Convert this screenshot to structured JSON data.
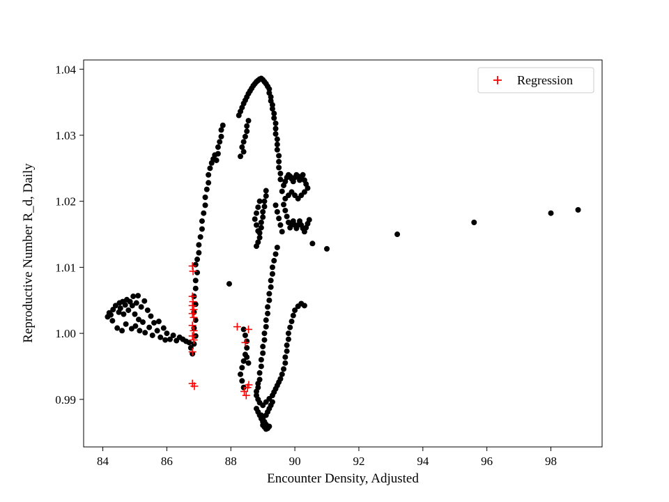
{
  "chart_data": {
    "type": "scatter",
    "title": "",
    "xlabel": "Encounter Density, Adjusted",
    "ylabel": "Reproductive Number R_d, Daily",
    "xlim": [
      83.4,
      99.6
    ],
    "ylim": [
      0.9828,
      1.0414
    ],
    "xticks": [
      84,
      86,
      88,
      90,
      92,
      94,
      96,
      98
    ],
    "yticks": [
      0.99,
      1.0,
      1.01,
      1.02,
      1.03,
      1.04
    ],
    "grid": false,
    "legend_position": "upper right",
    "series": [
      {
        "name": "data",
        "marker": "circle",
        "color": "#000000",
        "points": [
          [
            84.15,
            1.0025
          ],
          [
            84.2,
            1.0031
          ],
          [
            84.25,
            1.0028
          ],
          [
            84.3,
            1.0019
          ],
          [
            84.32,
            1.0036
          ],
          [
            84.4,
            1.0042
          ],
          [
            84.45,
            1.0008
          ],
          [
            84.5,
            1.0032
          ],
          [
            84.52,
            1.0046
          ],
          [
            84.55,
            1.0038
          ],
          [
            84.6,
            1.0004
          ],
          [
            84.62,
            1.0048
          ],
          [
            84.65,
            1.0029
          ],
          [
            84.7,
            1.0043
          ],
          [
            84.72,
            1.0014
          ],
          [
            84.75,
            1.0051
          ],
          [
            84.8,
            1.0035
          ],
          [
            84.85,
            1.0048
          ],
          [
            84.9,
            1.0007
          ],
          [
            84.92,
            1.0042
          ],
          [
            84.95,
            1.0056
          ],
          [
            85.0,
            1.0029
          ],
          [
            85.02,
            1.0011
          ],
          [
            85.05,
            1.0046
          ],
          [
            85.1,
            1.0057
          ],
          [
            85.12,
            1.0021
          ],
          [
            85.15,
            1.0004
          ],
          [
            85.2,
            1.004
          ],
          [
            85.25,
            1.0017
          ],
          [
            85.3,
            1.0049
          ],
          [
            85.32,
            1.0001
          ],
          [
            85.4,
            1.0035
          ],
          [
            85.45,
            1.0009
          ],
          [
            85.5,
            1.0026
          ],
          [
            85.55,
            0.9997
          ],
          [
            85.6,
            1.0016
          ],
          [
            85.7,
            1.0004
          ],
          [
            85.75,
            1.0018
          ],
          [
            85.8,
            0.9994
          ],
          [
            85.9,
            1.0008
          ],
          [
            85.95,
            0.999
          ],
          [
            86.0,
            1.0
          ],
          [
            86.1,
            0.9991
          ],
          [
            86.2,
            0.9997
          ],
          [
            86.3,
            0.9989
          ],
          [
            86.4,
            0.9994
          ],
          [
            86.5,
            0.9991
          ],
          [
            86.6,
            0.9988
          ],
          [
            86.7,
            0.9986
          ],
          [
            86.75,
            0.9978
          ],
          [
            86.8,
            0.9969
          ],
          [
            86.85,
            0.9984
          ],
          [
            86.9,
            0.9996
          ],
          [
            86.85,
            1.0008
          ],
          [
            86.9,
            1.002
          ],
          [
            86.85,
            1.0032
          ],
          [
            86.9,
            1.0044
          ],
          [
            86.85,
            1.0056
          ],
          [
            86.9,
            1.0068
          ],
          [
            86.9,
            1.008
          ],
          [
            86.95,
            1.0092
          ],
          [
            86.9,
            1.0104
          ],
          [
            86.95,
            1.0112
          ],
          [
            87.0,
            1.0122
          ],
          [
            87.0,
            1.0134
          ],
          [
            87.05,
            1.0146
          ],
          [
            87.1,
            1.0158
          ],
          [
            87.1,
            1.017
          ],
          [
            87.15,
            1.0182
          ],
          [
            87.2,
            1.0194
          ],
          [
            87.2,
            1.0206
          ],
          [
            87.25,
            1.0218
          ],
          [
            87.3,
            1.0228
          ],
          [
            87.3,
            1.024
          ],
          [
            87.35,
            1.025
          ],
          [
            87.4,
            1.0258
          ],
          [
            87.45,
            1.0264
          ],
          [
            87.5,
            1.027
          ],
          [
            87.55,
            1.0262
          ],
          [
            87.6,
            1.0272
          ],
          [
            87.6,
            1.0282
          ],
          [
            87.65,
            1.029
          ],
          [
            87.7,
            1.0298
          ],
          [
            87.7,
            1.0308
          ],
          [
            87.75,
            1.0315
          ],
          [
            87.95,
            1.0075
          ],
          [
            88.25,
            1.033
          ],
          [
            88.3,
            1.0336
          ],
          [
            88.35,
            1.0342
          ],
          [
            88.4,
            1.0348
          ],
          [
            88.45,
            1.0353
          ],
          [
            88.5,
            1.0358
          ],
          [
            88.55,
            1.0363
          ],
          [
            88.6,
            1.0367
          ],
          [
            88.65,
            1.0371
          ],
          [
            88.7,
            1.0375
          ],
          [
            88.75,
            1.0378
          ],
          [
            88.8,
            1.0381
          ],
          [
            88.85,
            1.0383
          ],
          [
            88.9,
            1.0385
          ],
          [
            88.95,
            1.0386
          ],
          [
            89.0,
            1.0384
          ],
          [
            89.05,
            1.0381
          ],
          [
            89.1,
            1.0378
          ],
          [
            89.15,
            1.0374
          ],
          [
            89.2,
            1.037
          ],
          [
            89.2,
            1.0364
          ],
          [
            89.25,
            1.0358
          ],
          [
            89.25,
            1.0352
          ],
          [
            89.3,
            1.0346
          ],
          [
            89.3,
            1.034
          ],
          [
            89.35,
            1.0333
          ],
          [
            89.35,
            1.0326
          ],
          [
            89.4,
            1.0318
          ],
          [
            89.4,
            1.031
          ],
          [
            89.4,
            1.0302
          ],
          [
            89.45,
            1.0294
          ],
          [
            89.45,
            1.0286
          ],
          [
            89.45,
            1.0278
          ],
          [
            89.5,
            1.0269
          ],
          [
            89.5,
            1.026
          ],
          [
            89.5,
            1.0251
          ],
          [
            89.55,
            1.0242
          ],
          [
            89.55,
            1.0233
          ],
          [
            88.35,
            1.0282
          ],
          [
            88.4,
            1.029
          ],
          [
            88.45,
            1.0298
          ],
          [
            88.5,
            1.0306
          ],
          [
            88.5,
            1.0314
          ],
          [
            88.55,
            1.0322
          ],
          [
            88.4,
            1.0275
          ],
          [
            88.3,
            1.0268
          ],
          [
            88.8,
            1.0132
          ],
          [
            88.85,
            1.0138
          ],
          [
            88.9,
            1.0145
          ],
          [
            88.9,
            1.0152
          ],
          [
            88.95,
            1.016
          ],
          [
            88.95,
            1.0168
          ],
          [
            89.0,
            1.0176
          ],
          [
            89.0,
            1.0184
          ],
          [
            89.05,
            1.0192
          ],
          [
            89.05,
            1.02
          ],
          [
            89.1,
            1.0208
          ],
          [
            89.1,
            1.0216
          ],
          [
            88.85,
            1.0155
          ],
          [
            88.8,
            1.0164
          ],
          [
            88.75,
            1.0173
          ],
          [
            88.8,
            1.0182
          ],
          [
            88.85,
            1.0191
          ],
          [
            88.9,
            1.02
          ],
          [
            89.6,
            1.0215
          ],
          [
            89.65,
            1.0224
          ],
          [
            89.7,
            1.023
          ],
          [
            89.75,
            1.0236
          ],
          [
            89.8,
            1.024
          ],
          [
            89.85,
            1.0238
          ],
          [
            89.9,
            1.0234
          ],
          [
            89.95,
            1.023
          ],
          [
            90.0,
            1.0236
          ],
          [
            90.05,
            1.024
          ],
          [
            90.1,
            1.0238
          ],
          [
            90.15,
            1.0232
          ],
          [
            90.2,
            1.0236
          ],
          [
            90.25,
            1.024
          ],
          [
            90.3,
            1.0232
          ],
          [
            90.35,
            1.0226
          ],
          [
            90.4,
            1.022
          ],
          [
            90.3,
            1.0214
          ],
          [
            90.2,
            1.0209
          ],
          [
            90.1,
            1.0204
          ],
          [
            90.0,
            1.0209
          ],
          [
            89.9,
            1.0214
          ],
          [
            89.8,
            1.0209
          ],
          [
            89.7,
            1.0204
          ],
          [
            89.65,
            1.0195
          ],
          [
            89.7,
            1.0186
          ],
          [
            89.75,
            1.0177
          ],
          [
            89.8,
            1.0168
          ],
          [
            89.85,
            1.016
          ],
          [
            89.9,
            1.0165
          ],
          [
            89.95,
            1.017
          ],
          [
            90.0,
            1.0164
          ],
          [
            90.05,
            1.0159
          ],
          [
            90.1,
            1.0164
          ],
          [
            90.15,
            1.017
          ],
          [
            90.2,
            1.0164
          ],
          [
            90.25,
            1.0159
          ],
          [
            90.3,
            1.0154
          ],
          [
            90.35,
            1.016
          ],
          [
            90.4,
            1.0166
          ],
          [
            90.45,
            1.0172
          ],
          [
            89.6,
            1.0154
          ],
          [
            89.55,
            1.0164
          ],
          [
            89.5,
            1.0174
          ],
          [
            89.45,
            1.0184
          ],
          [
            89.4,
            1.0194
          ],
          [
            89.45,
            1.013
          ],
          [
            89.4,
            1.012
          ],
          [
            89.35,
            1.011
          ],
          [
            89.3,
            1.01
          ],
          [
            89.3,
            1.009
          ],
          [
            89.25,
            1.008
          ],
          [
            89.25,
            1.007
          ],
          [
            89.2,
            1.006
          ],
          [
            89.2,
            1.005
          ],
          [
            89.15,
            1.004
          ],
          [
            89.15,
            1.003
          ],
          [
            89.1,
            1.002
          ],
          [
            89.1,
            1.001
          ],
          [
            89.05,
            1.0
          ],
          [
            89.05,
            0.999
          ],
          [
            89.0,
            0.998
          ],
          [
            89.0,
            0.997
          ],
          [
            88.95,
            0.996
          ],
          [
            88.95,
            0.995
          ],
          [
            88.9,
            0.994
          ],
          [
            88.9,
            0.993
          ],
          [
            88.85,
            0.9924
          ],
          [
            88.85,
            0.9918
          ],
          [
            88.8,
            0.9912
          ],
          [
            88.8,
            0.9906
          ],
          [
            88.85,
            0.99
          ],
          [
            88.9,
            0.9895
          ],
          [
            88.8,
            0.9886
          ],
          [
            88.85,
            0.9881
          ],
          [
            88.9,
            0.9876
          ],
          [
            88.95,
            0.9871
          ],
          [
            89.0,
            0.9866
          ],
          [
            89.0,
            0.9861
          ],
          [
            89.05,
            0.9858
          ],
          [
            89.1,
            0.9855
          ],
          [
            89.15,
            0.9856
          ],
          [
            89.2,
            0.9859
          ],
          [
            89.1,
            0.9862
          ],
          [
            89.05,
            0.9866
          ],
          [
            89.0,
            0.9871
          ],
          [
            88.95,
            0.9876
          ],
          [
            89.1,
            0.9876
          ],
          [
            89.15,
            0.9881
          ],
          [
            89.2,
            0.9886
          ],
          [
            89.25,
            0.9891
          ],
          [
            89.3,
            0.9896
          ],
          [
            89.2,
            0.9901
          ],
          [
            89.1,
            0.9896
          ],
          [
            89.0,
            0.9891
          ],
          [
            89.3,
            0.9906
          ],
          [
            89.35,
            0.9911
          ],
          [
            89.4,
            0.9916
          ],
          [
            89.45,
            0.9921
          ],
          [
            89.5,
            0.9926
          ],
          [
            89.55,
            0.9931
          ],
          [
            89.6,
            0.9938
          ],
          [
            89.65,
            0.9946
          ],
          [
            89.7,
            0.9955
          ],
          [
            89.7,
            0.9964
          ],
          [
            89.75,
            0.9973
          ],
          [
            89.75,
            0.9982
          ],
          [
            89.8,
            0.9991
          ],
          [
            89.8,
            1.0
          ],
          [
            89.85,
            1.0009
          ],
          [
            89.9,
            1.0018
          ],
          [
            89.95,
            1.0027
          ],
          [
            90.0,
            1.0035
          ],
          [
            90.1,
            1.0041
          ],
          [
            90.2,
            1.0045
          ],
          [
            90.3,
            1.0042
          ],
          [
            88.4,
            1.0006
          ],
          [
            88.45,
            0.9997
          ],
          [
            88.5,
            0.9988
          ],
          [
            88.5,
            0.9978
          ],
          [
            88.45,
            0.9968
          ],
          [
            88.4,
            0.9958
          ],
          [
            88.35,
            0.9948
          ],
          [
            88.3,
            0.9938
          ],
          [
            88.35,
            0.9928
          ],
          [
            88.4,
            0.9918
          ],
          [
            88.5,
            0.9964
          ],
          [
            88.55,
            0.9955
          ],
          [
            90.55,
            1.0136
          ],
          [
            91.0,
            1.0128
          ],
          [
            93.2,
            1.015
          ],
          [
            95.6,
            1.0168
          ],
          [
            98.0,
            1.0182
          ],
          [
            98.85,
            1.0187
          ]
        ]
      },
      {
        "name": "Regression",
        "marker": "plus",
        "color": "#ff0000",
        "points": [
          [
            86.8,
            1.0102
          ],
          [
            86.82,
            1.0094
          ],
          [
            86.8,
            1.0056
          ],
          [
            86.82,
            1.0048
          ],
          [
            86.8,
            1.0042
          ],
          [
            86.84,
            1.0036
          ],
          [
            86.8,
            1.003
          ],
          [
            86.84,
            1.0024
          ],
          [
            86.8,
            1.0012
          ],
          [
            86.84,
            1.0004
          ],
          [
            86.8,
            0.9996
          ],
          [
            86.84,
            0.999
          ],
          [
            86.8,
            0.9972
          ],
          [
            86.8,
            0.9924
          ],
          [
            86.86,
            0.992
          ],
          [
            88.2,
            1.001
          ],
          [
            88.55,
            1.0006
          ],
          [
            88.45,
            0.9986
          ],
          [
            88.42,
            0.9912
          ],
          [
            88.48,
            0.9906
          ],
          [
            88.52,
            0.9918
          ],
          [
            88.56,
            0.9922
          ]
        ]
      }
    ]
  },
  "legend": {
    "label": "Regression"
  }
}
